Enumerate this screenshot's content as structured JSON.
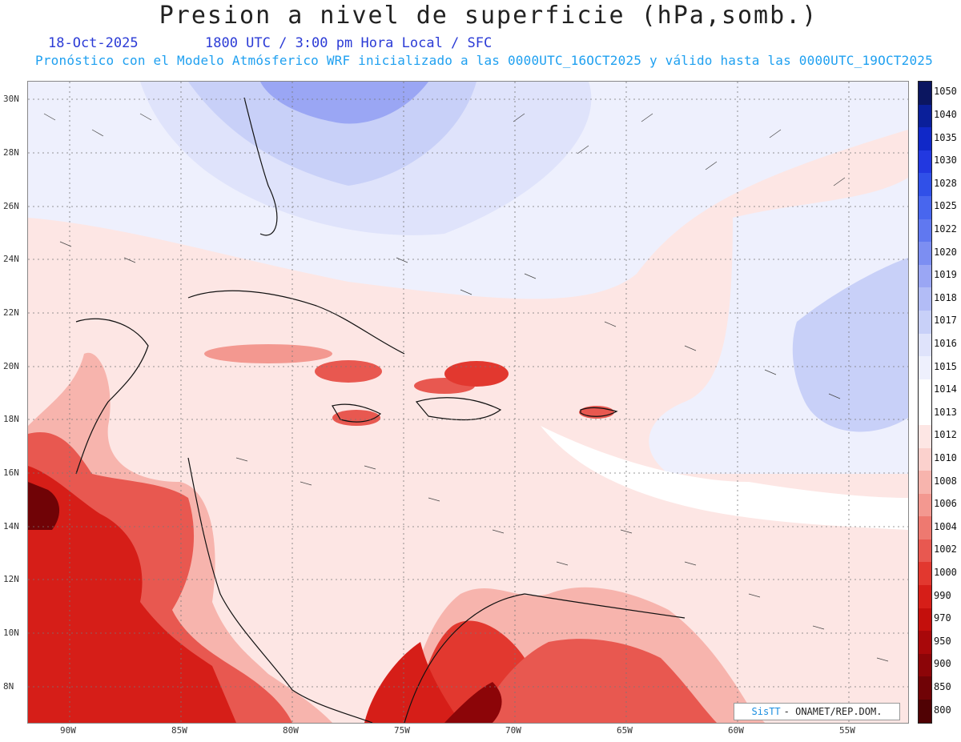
{
  "header": {
    "title": "Presion a nivel de superficie (hPa,somb.)",
    "date": "18-Oct-2025",
    "time": "1800 UTC / 3:00 pm Hora Local / SFC",
    "description": "Pronóstico con el Modelo Atmósferico WRF inicializado a las 0000UTC_16OCT2025 y válido hasta las  0000UTC_19OCT2025"
  },
  "map": {
    "lat_labels": [
      "30N",
      "28N",
      "26N",
      "24N",
      "22N",
      "20N",
      "18N",
      "16N",
      "14N",
      "12N",
      "10N",
      "8N"
    ],
    "lon_labels": [
      "90W",
      "85W",
      "80W",
      "75W",
      "70W",
      "65W",
      "60W",
      "55W"
    ]
  },
  "colorbar": {
    "levels": [
      "1050",
      "1040",
      "1035",
      "1030",
      "1028",
      "1025",
      "1022",
      "1020",
      "1019",
      "1018",
      "1017",
      "1016",
      "1015",
      "1014",
      "1013",
      "1012",
      "1010",
      "1008",
      "1006",
      "1004",
      "1002",
      "1000",
      "990",
      "970",
      "950",
      "900",
      "850",
      "800"
    ],
    "colors": [
      "#0b1660",
      "#0a1f9a",
      "#1028c8",
      "#2238e0",
      "#3050e8",
      "#4866ee",
      "#6078f0",
      "#7c8ef2",
      "#9aa6f4",
      "#b2bcf6",
      "#c8d0f8",
      "#dfe3fb",
      "#eef0fd",
      "#ffffff",
      "#ffffff",
      "#fde6e4",
      "#fbd1cd",
      "#f7b4ad",
      "#f39890",
      "#ee7970",
      "#e85850",
      "#e2382f",
      "#d61e18",
      "#c40f0c",
      "#a8080a",
      "#8c0508",
      "#700306",
      "#500204"
    ]
  },
  "credit": {
    "brand": "SisTT",
    "org": "- ONAMET/REP.DOM."
  }
}
